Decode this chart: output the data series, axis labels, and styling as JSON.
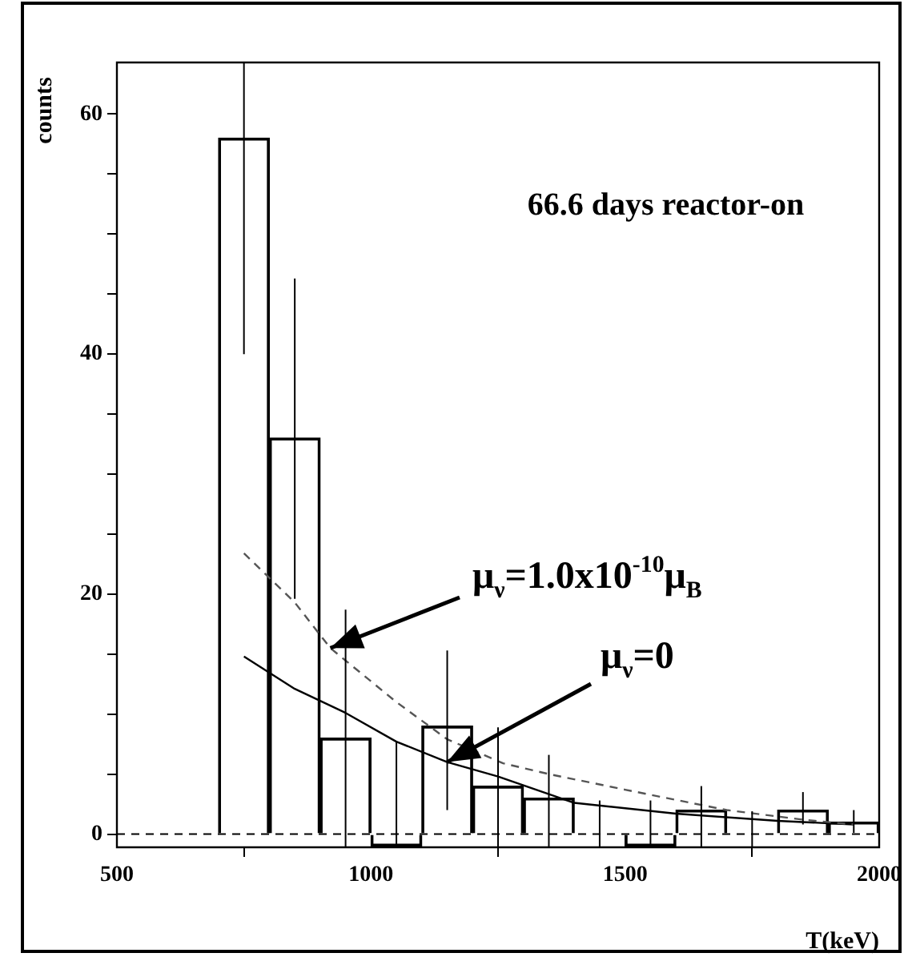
{
  "chart_data": {
    "type": "bar",
    "title": "66.6 days reactor-on",
    "xlabel": "T(keV)",
    "ylabel": "counts",
    "series": [
      {
        "color": "#000000",
        "x": [
          550,
          650,
          750,
          850,
          950,
          1050,
          1150,
          1250,
          1350,
          1450,
          1550,
          1650,
          1750,
          1850,
          1950
        ],
        "values": [
          0,
          0,
          58,
          33,
          8,
          -1,
          9,
          4,
          3,
          0,
          -1,
          2,
          0,
          2,
          1
        ],
        "errors": [
          null,
          null,
          [
            40,
            64.3
          ],
          [
            19.6,
            46.3
          ],
          [
            -1.1,
            18.7
          ],
          [
            -1.1,
            7.7
          ],
          [
            2,
            15.3
          ],
          [
            -1.1,
            8.9
          ],
          [
            -1.1,
            6.6
          ],
          [
            -1.1,
            2.8
          ],
          [
            -1.1,
            2.8
          ],
          [
            -1.1,
            4
          ],
          [
            -1.1,
            1.9
          ],
          [
            0.8,
            3.5
          ],
          [
            0.1,
            2
          ]
        ]
      },
      {
        "type": "line",
        "color": "#555555",
        "line_style": "dashed",
        "x": [
          750,
          850,
          920,
          1050,
          1150,
          1260,
          1350,
          1500,
          1700,
          1850,
          1950
        ],
        "values": [
          23.4,
          19.3,
          15.5,
          11,
          7.9,
          5.9,
          5,
          3.7,
          2,
          1.2,
          0.8
        ]
      },
      {
        "type": "line",
        "color": "#000000",
        "line_style": "solid",
        "x": [
          750,
          850,
          950,
          1050,
          1150,
          1250,
          1400,
          1600,
          1800,
          1950
        ],
        "values": [
          14.8,
          12.1,
          10.1,
          7.7,
          6,
          4.8,
          2.6,
          1.7,
          1.1,
          0.8
        ]
      }
    ],
    "ref_lines": [
      {
        "axis": "y",
        "value": 0,
        "line_style": "dashed",
        "color": "#000000"
      }
    ],
    "annotations": [
      {
        "text": "μ$_{ν}$=1.0x10$^{-10}$μ$_{B}$",
        "x": 920,
        "y": 15.5
      },
      {
        "text": "μ$_{ν}$=0",
        "x": 1150,
        "y": 6
      }
    ],
    "xlim": [
      500,
      2000
    ],
    "ylim": [
      -1.1,
      64.3
    ],
    "xticks": [
      500,
      1000,
      1500,
      2000
    ],
    "yticks": [
      0,
      {
        "value": 5,
        "label": null
      },
      {
        "value": 10,
        "label": null
      },
      {
        "value": 15,
        "label": null
      },
      20,
      {
        "value": 25,
        "label": null
      },
      {
        "value": 30,
        "label": null
      },
      {
        "value": 35,
        "label": null
      },
      40,
      {
        "value": 45,
        "label": null
      },
      {
        "value": 50,
        "label": null
      },
      {
        "value": 55,
        "label": null
      },
      60
    ],
    "grid": false,
    "legend": false,
    "marker": "none"
  }
}
